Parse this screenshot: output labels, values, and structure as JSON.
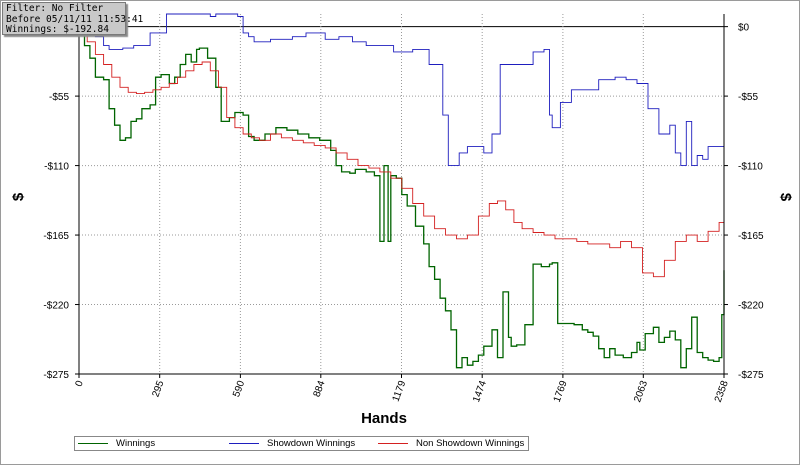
{
  "info_box": {
    "filter": "Filter: No Filter",
    "before": "Before 05/11/11 11:53:41",
    "winnings": "Winnings: $-192.84"
  },
  "colors": {
    "winnings": "#006400",
    "showdown": "#1e1ebe",
    "non_showdown": "#d42020",
    "grid": "#9a9a9a"
  },
  "chart_data": {
    "type": "line",
    "xlabel": "Hands",
    "ylabel_left": "$",
    "ylabel_right": "$",
    "xlim": [
      0,
      2358
    ],
    "ylim": [
      -275,
      10
    ],
    "x_ticks": [
      "0",
      "295",
      "590",
      "884",
      "1179",
      "1474",
      "1769",
      "2063",
      "2358"
    ],
    "y_ticks_left": [
      "$0",
      "-$55",
      "-$110",
      "-$165",
      "-$220",
      "-$275"
    ],
    "y_ticks_right": [
      "$0",
      "-$55",
      "-$110",
      "-$165",
      "-$220",
      "-$275"
    ],
    "legend_placement": "bottom",
    "series": [
      {
        "name": "Winnings",
        "color": "#006400",
        "x": [
          0,
          10,
          20,
          40,
          60,
          90,
          110,
          130,
          150,
          170,
          190,
          210,
          230,
          260,
          280,
          300,
          330,
          350,
          370,
          390,
          410,
          430,
          440,
          470,
          500,
          520,
          550,
          570,
          600,
          620,
          640,
          680,
          720,
          760,
          800,
          840,
          880,
          920,
          940,
          960,
          990,
          1010,
          1050,
          1080,
          1100,
          1115,
          1130,
          1140,
          1160,
          1180,
          1200,
          1230,
          1260,
          1280,
          1300,
          1320,
          1340,
          1360,
          1380,
          1400,
          1420,
          1440,
          1460,
          1480,
          1510,
          1530,
          1550,
          1570,
          1580,
          1600,
          1630,
          1660,
          1690,
          1710,
          1720,
          1730,
          1750,
          1780,
          1810,
          1840,
          1860,
          1880,
          1900,
          1920,
          1940,
          1960,
          1990,
          2020,
          2040,
          2050,
          2070,
          2100,
          2120,
          2140,
          2160,
          2180,
          2200,
          2220,
          2240,
          2260,
          2280,
          2300,
          2320,
          2340,
          2350,
          2358
        ],
        "y": [
          0,
          -5,
          -15,
          -25,
          -40,
          -42,
          -65,
          -78,
          -90,
          -88,
          -75,
          -73,
          -65,
          -62,
          -40,
          -38,
          -45,
          -40,
          -30,
          -22,
          -28,
          -18,
          -17,
          -25,
          -48,
          -75,
          -72,
          -68,
          -70,
          -87,
          -90,
          -85,
          -80,
          -82,
          -85,
          -88,
          -90,
          -98,
          -110,
          -115,
          -116,
          -113,
          -115,
          -118,
          -170,
          -110,
          -170,
          -118,
          -120,
          -133,
          -142,
          -158,
          -172,
          -190,
          -200,
          -215,
          -225,
          -240,
          -270,
          -262,
          -268,
          -265,
          -260,
          -253,
          -240,
          -262,
          -210,
          -246,
          -253,
          -252,
          -236,
          -188,
          -190,
          -190,
          -188,
          -187,
          -235,
          -235,
          -236,
          -240,
          -242,
          -245,
          -255,
          -262,
          -255,
          -260,
          -262,
          -258,
          -250,
          -256,
          -243,
          -238,
          -250,
          -246,
          -241,
          -248,
          -270,
          -255,
          -230,
          -258,
          -262,
          -264,
          -265,
          -262,
          -228,
          -192.84
        ]
      },
      {
        "name": "Showdown Winnings",
        "color": "#1e1ebe",
        "x": [
          0,
          20,
          60,
          90,
          110,
          160,
          200,
          260,
          320,
          400,
          450,
          480,
          500,
          520,
          550,
          580,
          600,
          620,
          640,
          700,
          780,
          830,
          900,
          950,
          1000,
          1050,
          1100,
          1130,
          1150,
          1180,
          1220,
          1280,
          1330,
          1350,
          1390,
          1420,
          1480,
          1510,
          1540,
          1580,
          1620,
          1660,
          1700,
          1720,
          1730,
          1760,
          1800,
          1900,
          1960,
          2000,
          2040,
          2080,
          2120,
          2160,
          2180,
          2200,
          2220,
          2240,
          2260,
          2280,
          2300,
          2320,
          2340,
          2358
        ],
        "y": [
          8,
          5,
          -8,
          -15,
          -18,
          -17,
          -15,
          -5,
          10,
          15,
          12,
          8,
          12,
          14,
          12,
          8,
          -5,
          -8,
          -12,
          -10,
          -8,
          -5,
          -10,
          -8,
          -12,
          -15,
          -15,
          -15,
          -20,
          -20,
          -18,
          -30,
          -70,
          -110,
          -100,
          -95,
          -100,
          -85,
          -30,
          -30,
          -30,
          -20,
          -18,
          -70,
          -80,
          -60,
          -50,
          -42,
          -40,
          -42,
          -45,
          -65,
          -85,
          -78,
          -100,
          -110,
          -75,
          -110,
          -102,
          -105,
          -95,
          -95,
          -95,
          -111
        ]
      },
      {
        "name": "Non Showdown Winnings",
        "color": "#d42020",
        "x": [
          0,
          30,
          60,
          90,
          120,
          150,
          180,
          210,
          240,
          270,
          300,
          330,
          360,
          390,
          420,
          450,
          480,
          510,
          540,
          570,
          600,
          630,
          660,
          700,
          740,
          780,
          820,
          860,
          900,
          940,
          980,
          1020,
          1060,
          1100,
          1140,
          1180,
          1220,
          1260,
          1300,
          1340,
          1380,
          1420,
          1460,
          1500,
          1530,
          1560,
          1590,
          1620,
          1660,
          1700,
          1740,
          1780,
          1820,
          1860,
          1900,
          1940,
          1980,
          2020,
          2060,
          2100,
          2140,
          2180,
          2220,
          2260,
          2300,
          2340,
          2358
        ],
        "y": [
          0,
          -12,
          -22,
          -30,
          -40,
          -48,
          -52,
          -53,
          -52,
          -50,
          -48,
          -45,
          -40,
          -35,
          -30,
          -28,
          -35,
          -48,
          -72,
          -80,
          -85,
          -88,
          -90,
          -85,
          -88,
          -90,
          -92,
          -94,
          -96,
          -100,
          -105,
          -110,
          -112,
          -115,
          -120,
          -128,
          -140,
          -150,
          -160,
          -165,
          -168,
          -165,
          -150,
          -140,
          -138,
          -145,
          -155,
          -160,
          -163,
          -165,
          -168,
          -168,
          -170,
          -172,
          -172,
          -175,
          -170,
          -175,
          -195,
          -198,
          -185,
          -170,
          -165,
          -170,
          -162,
          -155,
          -150
        ]
      }
    ]
  },
  "legend": {
    "items": [
      {
        "label": "Winnings"
      },
      {
        "label": "Showdown Winnings"
      },
      {
        "label": "Non Showdown Winnings"
      }
    ]
  }
}
